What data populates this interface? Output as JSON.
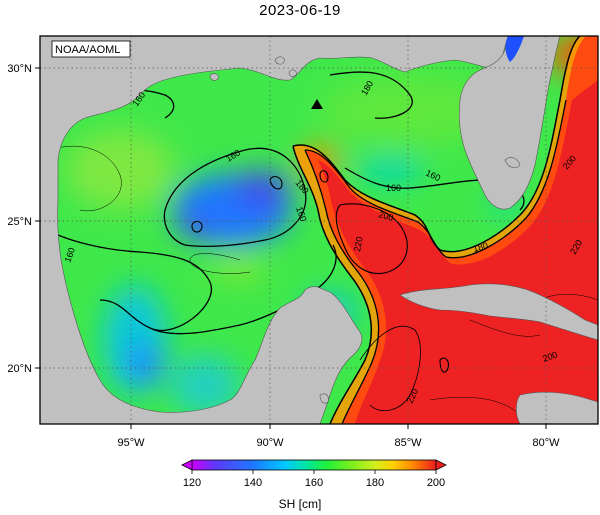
{
  "title": "2023-06-19",
  "credit": "NOAA/AOML",
  "axes": {
    "lon_ticks": [
      "95°W",
      "90°W",
      "85°W",
      "80°W"
    ],
    "lat_ticks": [
      "30°N",
      "25°N",
      "20°N"
    ]
  },
  "contour_labels": [
    "160",
    "160",
    "160",
    "160",
    "160",
    "160",
    "180",
    "180",
    "180",
    "200",
    "200",
    "220",
    "220",
    "220",
    "200"
  ],
  "colorbar": {
    "ticks": [
      "120",
      "140",
      "160",
      "180",
      "200"
    ],
    "unit_label": "SH [cm]",
    "colors": [
      "#cc00ff",
      "#5a3cff",
      "#1e78ff",
      "#00c8ff",
      "#00e6a0",
      "#1ef03c",
      "#78f01e",
      "#d2ee1e",
      "#ffd200",
      "#ff8c00",
      "#ff3c00",
      "#ee1e1e"
    ]
  },
  "colors": {
    "land": "#c0c0c0",
    "frame": "#000000",
    "gridline": "#555555"
  },
  "marker": "triangle-marker"
}
